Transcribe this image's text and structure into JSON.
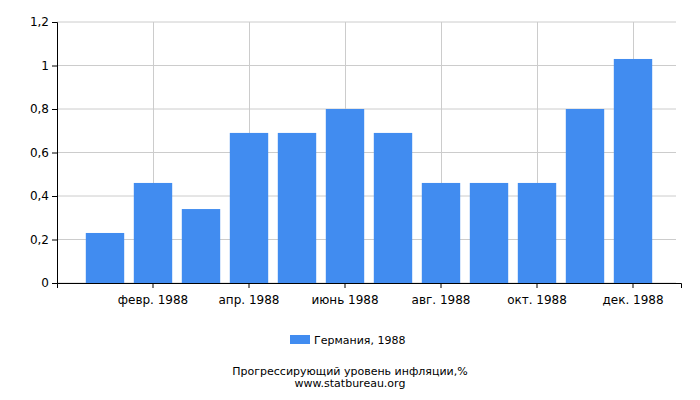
{
  "chart_data": {
    "type": "bar",
    "title": "Прогрессирующий уровень инфляции,%",
    "subtitle": "www.statbureau.org",
    "categories": [
      null,
      "февр. 1988",
      null,
      "апр. 1988",
      null,
      "июнь 1988",
      null,
      "авг. 1988",
      null,
      "окт. 1988",
      null,
      "дек. 1988"
    ],
    "series": [
      {
        "name": "Германия, 1988",
        "color": "#418cf0",
        "values": [
          0.23,
          0.46,
          0.34,
          0.69,
          0.69,
          0.8,
          0.69,
          0.46,
          0.46,
          0.46,
          0.8,
          1.03
        ]
      }
    ],
    "ylim": [
      0,
      1.2
    ],
    "yticks": [
      0,
      {
        "value": 0.2,
        "label": "0,2"
      },
      {
        "value": 0.4,
        "label": "0,4"
      },
      {
        "value": 0.6,
        "label": "0,6"
      },
      {
        "value": 0.8,
        "label": "0,8"
      },
      1,
      {
        "value": 1.2,
        "label": "1,2"
      }
    ],
    "grid": true,
    "legend": "bottom"
  }
}
